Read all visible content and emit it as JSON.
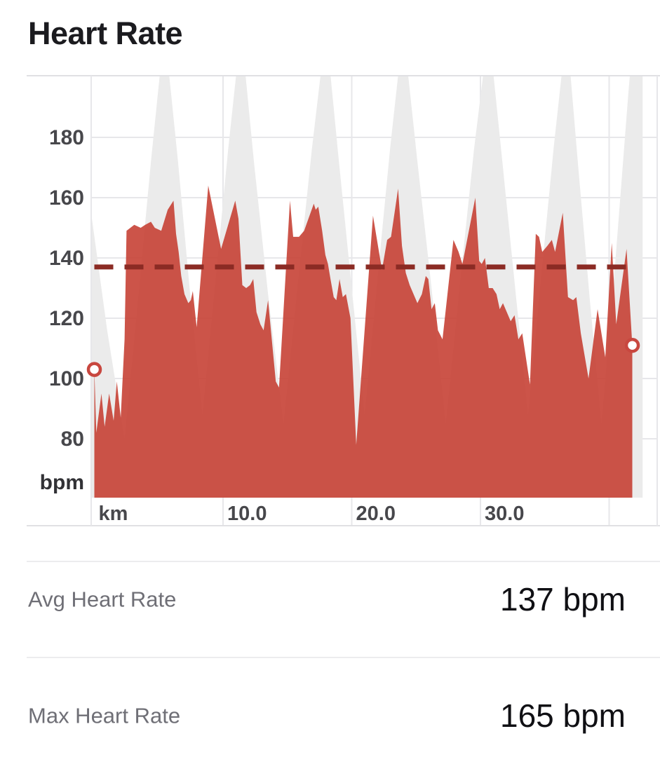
{
  "title": "Heart Rate",
  "stats": [
    {
      "label": "Avg Heart Rate",
      "value": "137 bpm"
    },
    {
      "label": "Max Heart Rate",
      "value": "165 bpm"
    }
  ],
  "colors": {
    "hr_fill": "#C64135",
    "hr_fill_opacity": 0.9,
    "elevation_fill": "#EBEBEB",
    "avg_line": "#8B2B24",
    "marker_ring": "#C8473F",
    "marker_center": "#FFFFFF",
    "grid": "#E7E7EA",
    "border": "#E0E0E3",
    "axis_text": "#47474B",
    "axis_unit_text": "#313135",
    "title_text": "#1B1B1F",
    "stat_label": "#6F6F76",
    "stat_value": "#101014",
    "divider": "#ECECEE"
  },
  "chart_data": {
    "type": "area",
    "title": "Heart Rate",
    "y_unit": "bpm",
    "x_unit": "km",
    "ylim": [
      60.5,
      200.5
    ],
    "xlim_km": [
      0,
      43.7
    ],
    "grid": true,
    "y_ticks": [
      180,
      160,
      140,
      120,
      100,
      80
    ],
    "x_ticks": [
      {
        "label": "km",
        "km": 0
      },
      {
        "label": "10.0",
        "km": 10
      },
      {
        "label": "20.0",
        "km": 20
      },
      {
        "label": "30.0",
        "km": 30
      }
    ],
    "x_gridlines_km": [
      10,
      20,
      30,
      40
    ],
    "avg_heart_rate_bpm": 137,
    "max_heart_rate_bpm": 165,
    "start_point": {
      "km": 0,
      "bpm": 103
    },
    "end_point": {
      "km": 41.8,
      "bpm": 111
    },
    "series": [
      {
        "name": "heart-rate",
        "kind": "area",
        "points": [
          [
            0,
            103
          ],
          [
            0.15,
            82
          ],
          [
            0.55,
            95
          ],
          [
            0.8,
            84
          ],
          [
            1.15,
            95
          ],
          [
            1.5,
            86
          ],
          [
            1.75,
            99
          ],
          [
            2.05,
            87
          ],
          [
            2.35,
            113
          ],
          [
            2.5,
            149
          ],
          [
            3.1,
            151
          ],
          [
            3.6,
            150
          ],
          [
            3.95,
            151
          ],
          [
            4.4,
            152
          ],
          [
            4.7,
            150
          ],
          [
            5.2,
            149
          ],
          [
            5.7,
            156
          ],
          [
            6.0,
            158
          ],
          [
            6.15,
            159
          ],
          [
            6.35,
            148
          ],
          [
            6.55,
            142
          ],
          [
            6.75,
            134
          ],
          [
            7.0,
            128
          ],
          [
            7.3,
            125
          ],
          [
            7.5,
            126
          ],
          [
            7.65,
            129
          ],
          [
            7.95,
            117
          ],
          [
            8.85,
            164
          ],
          [
            9.85,
            143
          ],
          [
            10.95,
            159
          ],
          [
            11.2,
            153
          ],
          [
            11.5,
            131
          ],
          [
            11.8,
            130
          ],
          [
            12.1,
            131
          ],
          [
            12.35,
            133
          ],
          [
            12.6,
            122
          ],
          [
            12.9,
            118
          ],
          [
            13.15,
            116
          ],
          [
            13.5,
            126
          ],
          [
            14.1,
            99
          ],
          [
            14.35,
            97
          ],
          [
            15.2,
            159
          ],
          [
            15.45,
            147
          ],
          [
            15.9,
            147
          ],
          [
            16.3,
            149
          ],
          [
            17.05,
            158
          ],
          [
            17.2,
            156
          ],
          [
            17.4,
            157
          ],
          [
            17.7,
            149
          ],
          [
            17.95,
            141
          ],
          [
            18.15,
            138
          ],
          [
            18.35,
            133
          ],
          [
            18.6,
            127
          ],
          [
            18.8,
            126
          ],
          [
            19.05,
            133
          ],
          [
            19.3,
            127
          ],
          [
            19.55,
            128
          ],
          [
            19.9,
            120
          ],
          [
            20.35,
            78
          ],
          [
            21.65,
            154
          ],
          [
            22.35,
            136
          ],
          [
            22.75,
            146
          ],
          [
            23.05,
            147
          ],
          [
            23.6,
            163
          ],
          [
            23.9,
            144
          ],
          [
            24.2,
            135
          ],
          [
            24.5,
            131
          ],
          [
            24.8,
            128
          ],
          [
            25.1,
            125
          ],
          [
            25.45,
            128
          ],
          [
            25.75,
            134
          ],
          [
            25.95,
            133
          ],
          [
            26.2,
            123
          ],
          [
            26.45,
            125
          ],
          [
            26.7,
            116
          ],
          [
            27.05,
            113
          ],
          [
            27.9,
            146
          ],
          [
            28.3,
            142
          ],
          [
            28.6,
            138
          ],
          [
            29.6,
            160
          ],
          [
            29.9,
            139
          ],
          [
            30.1,
            138
          ],
          [
            30.35,
            140
          ],
          [
            30.65,
            130
          ],
          [
            30.95,
            130
          ],
          [
            31.25,
            128
          ],
          [
            31.5,
            123
          ],
          [
            31.75,
            125
          ],
          [
            32.05,
            122
          ],
          [
            32.35,
            119
          ],
          [
            32.65,
            121
          ],
          [
            32.95,
            113
          ],
          [
            33.25,
            115
          ],
          [
            33.85,
            98
          ],
          [
            34.3,
            148
          ],
          [
            34.55,
            147
          ],
          [
            34.8,
            142
          ],
          [
            35.2,
            144
          ],
          [
            35.55,
            146
          ],
          [
            35.8,
            142
          ],
          [
            36.4,
            155
          ],
          [
            36.8,
            127
          ],
          [
            37.2,
            126
          ],
          [
            37.45,
            127
          ],
          [
            37.8,
            115
          ],
          [
            38.4,
            100
          ],
          [
            39.1,
            123
          ],
          [
            39.7,
            107
          ],
          [
            40.2,
            145
          ],
          [
            40.55,
            118
          ],
          [
            41.35,
            143
          ],
          [
            41.8,
            111
          ]
        ]
      },
      {
        "name": "elevation-background",
        "kind": "area",
        "points": [
          [
            -0.25,
            155
          ],
          [
            1.0,
            116
          ],
          [
            2.35,
            80
          ],
          [
            3.3,
            122
          ],
          [
            4.4,
            172
          ],
          [
            5.45,
            216
          ],
          [
            6.5,
            172
          ],
          [
            7.4,
            130
          ],
          [
            8.4,
            88
          ],
          [
            9.4,
            132
          ],
          [
            10.4,
            176
          ],
          [
            11.4,
            216
          ],
          [
            12.4,
            172
          ],
          [
            13.5,
            128
          ],
          [
            14.7,
            85
          ],
          [
            15.8,
            131
          ],
          [
            16.9,
            176
          ],
          [
            18.0,
            216
          ],
          [
            19.0,
            172
          ],
          [
            20.0,
            130
          ],
          [
            21.0,
            88
          ],
          [
            22.0,
            133
          ],
          [
            23.0,
            177
          ],
          [
            24.0,
            216
          ],
          [
            25.1,
            172
          ],
          [
            26.2,
            130
          ],
          [
            27.3,
            85
          ],
          [
            28.4,
            131
          ],
          [
            29.5,
            176
          ],
          [
            30.65,
            216
          ],
          [
            31.7,
            172
          ],
          [
            32.7,
            130
          ],
          [
            33.7,
            88
          ],
          [
            34.7,
            133
          ],
          [
            35.7,
            177
          ],
          [
            36.7,
            216
          ],
          [
            37.6,
            170
          ],
          [
            38.5,
            126
          ],
          [
            39.4,
            85
          ],
          [
            40.5,
            140
          ],
          [
            41.5,
            195
          ],
          [
            42.6,
            250
          ]
        ]
      }
    ]
  }
}
